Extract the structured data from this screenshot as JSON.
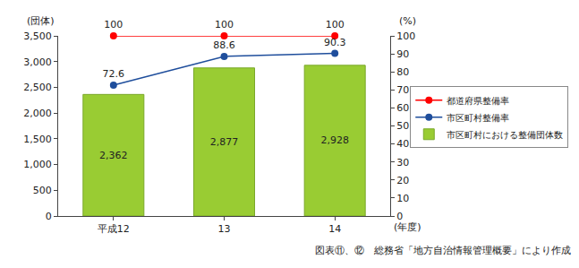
{
  "chart_data": {
    "type": "bar",
    "categories": [
      "平成12",
      "13",
      "14"
    ],
    "series": [
      {
        "name": "都道府県整備率",
        "type": "line",
        "color": "#ff0000",
        "marker": "circle",
        "axis": "y2",
        "values": [
          100,
          100,
          100
        ]
      },
      {
        "name": "市区町村整備率",
        "type": "line",
        "color": "#1f4e9c",
        "marker": "circle",
        "axis": "y2",
        "values": [
          72.6,
          88.6,
          90.3
        ]
      },
      {
        "name": "市区町村における整備団体数",
        "type": "bar",
        "color": "#99cc33",
        "values": [
          2362,
          2877,
          2928
        ],
        "value_labels": [
          "2,362",
          "2,877",
          "2,928"
        ]
      }
    ],
    "ylim": [
      0,
      3500
    ],
    "yticks": [
      0,
      500,
      {
        "value": 1000,
        "label": "1,000"
      },
      {
        "value": 1500,
        "label": "1,500"
      },
      {
        "value": 2000,
        "label": "2,000"
      },
      {
        "value": 2500,
        "label": "2,500"
      },
      {
        "value": 3000,
        "label": "3,000"
      },
      {
        "value": 3500,
        "label": "3,500"
      }
    ],
    "y2lim": [
      0,
      100
    ],
    "y2ticks": [
      0,
      10,
      20,
      30,
      40,
      50,
      60,
      70,
      80,
      90,
      100
    ],
    "y_label": "(団体)",
    "y2_label": "(%)",
    "x_label": "(年度)",
    "annotations": [
      "図表⑪、⑫　総務省「地方自治情報管理概要」により作成"
    ],
    "data_labels": true,
    "grid": false,
    "legend": "right"
  }
}
